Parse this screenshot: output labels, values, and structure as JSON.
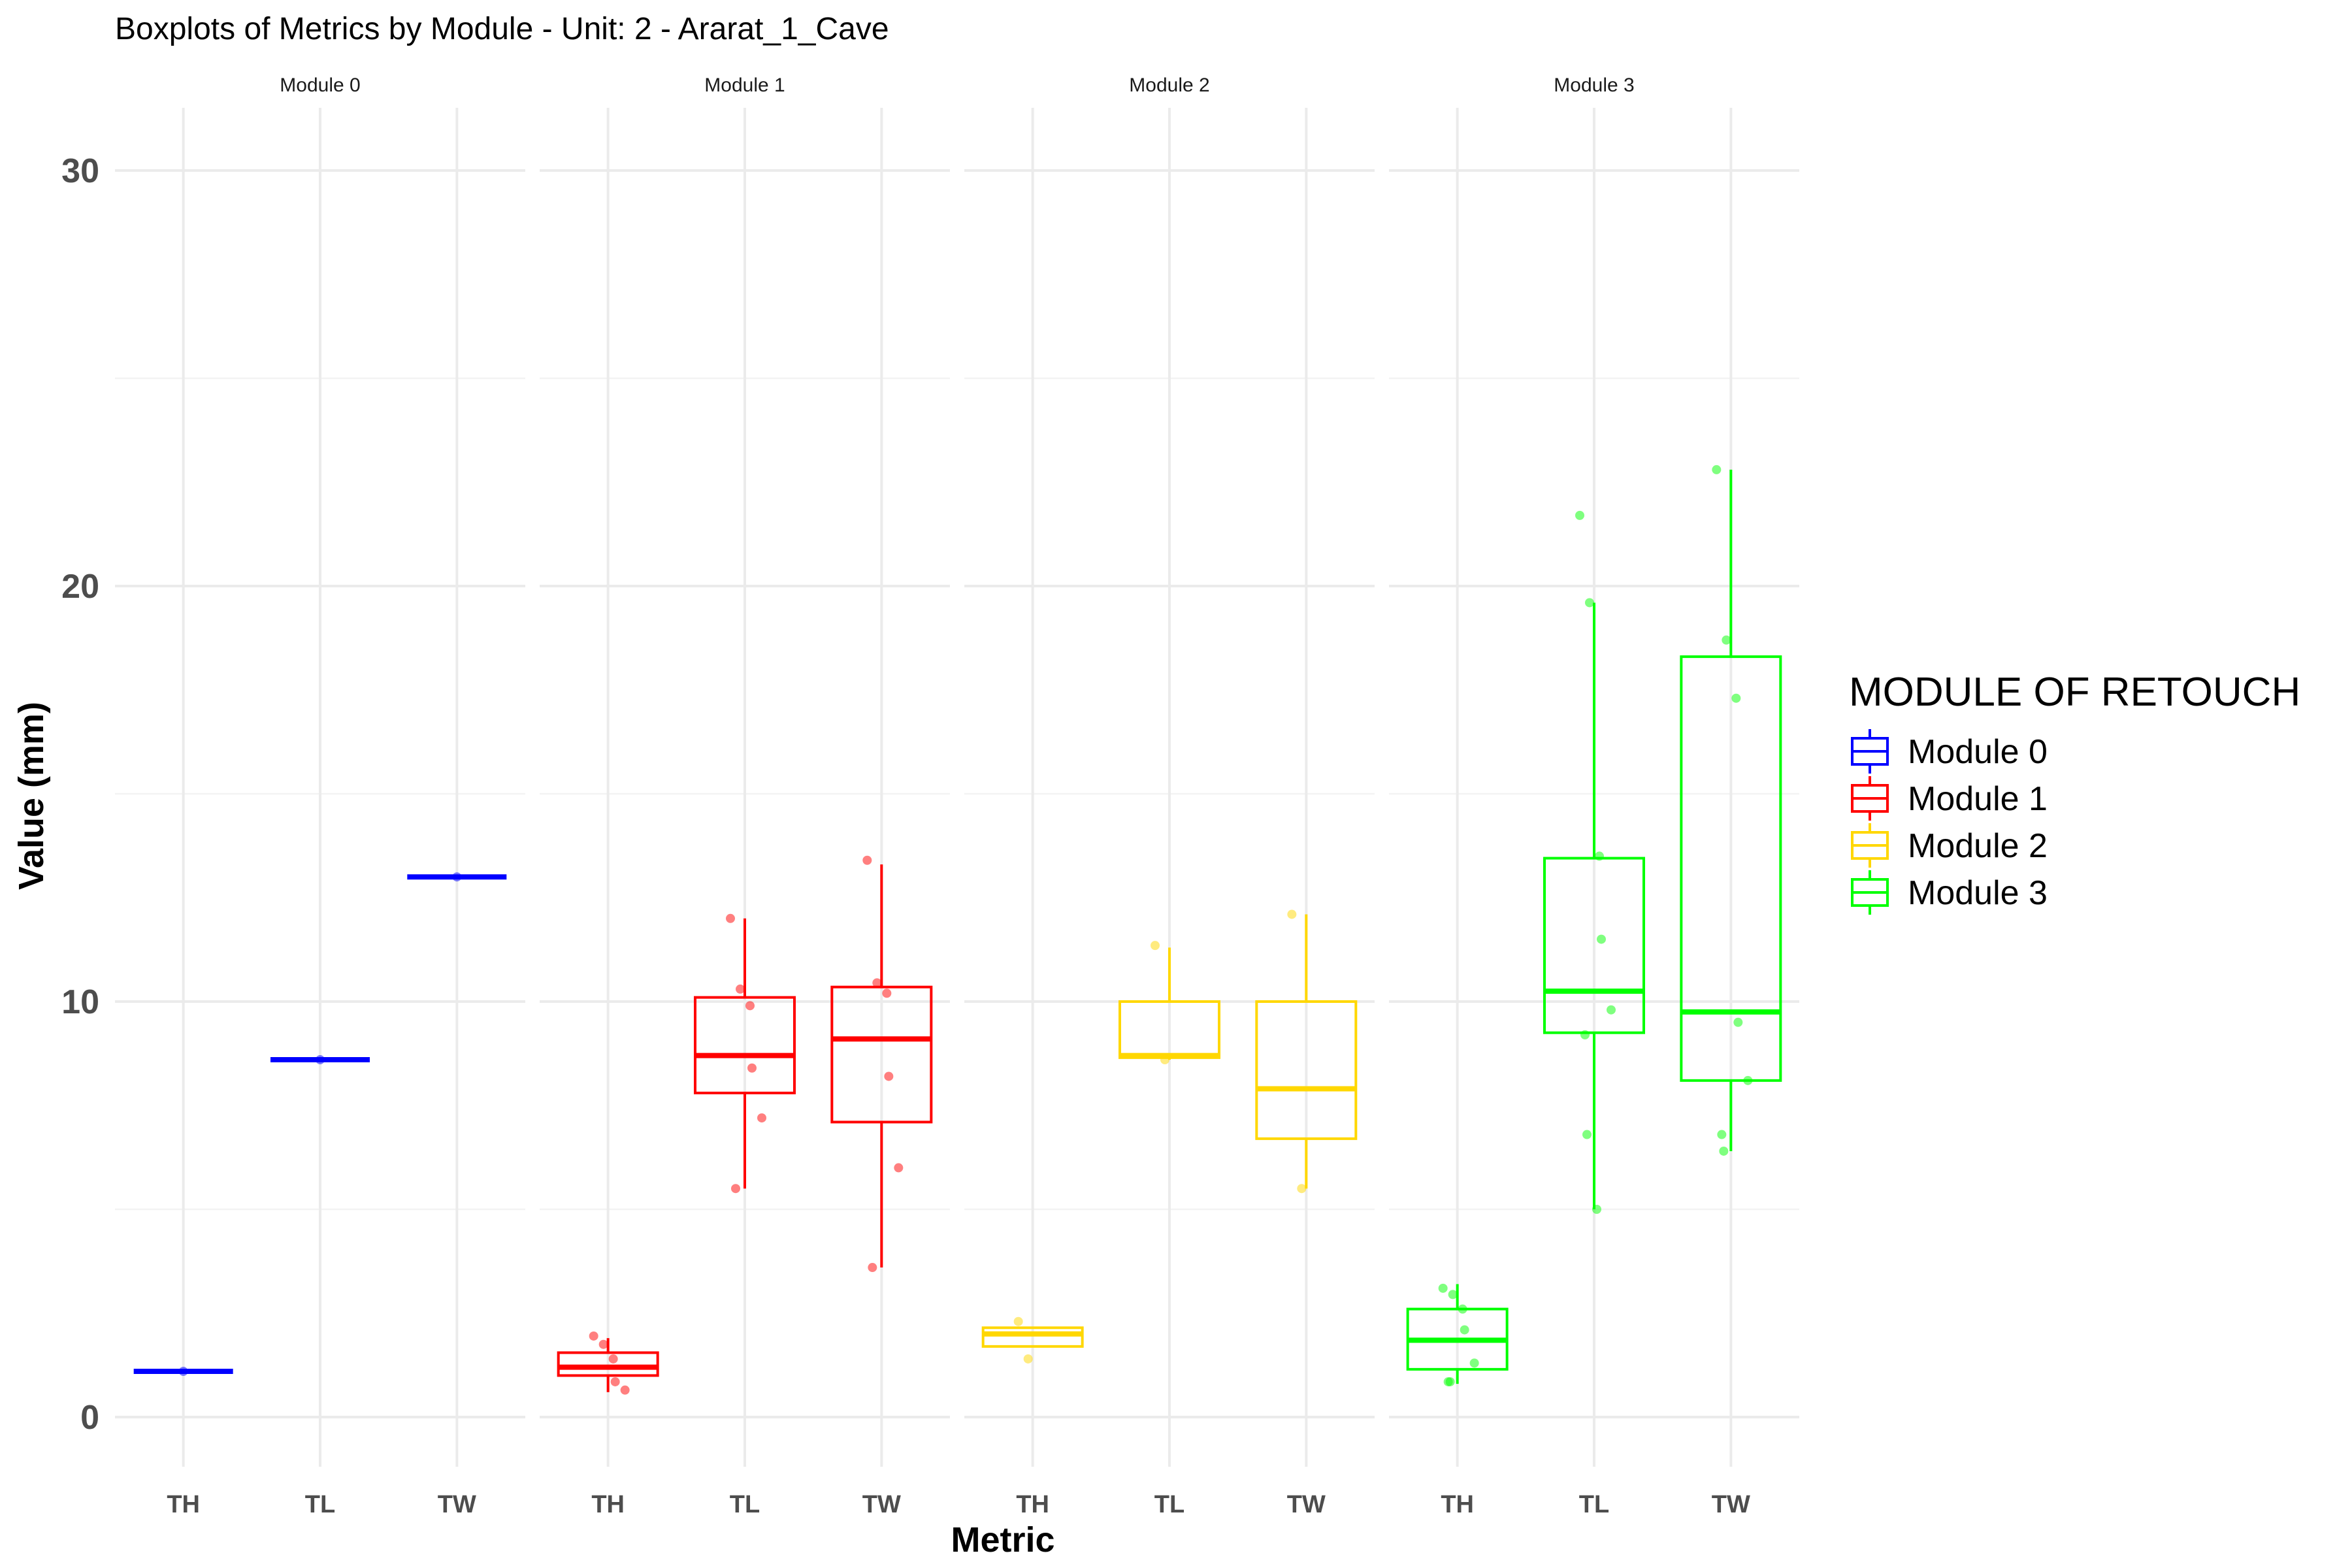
{
  "chart_data": {
    "type": "boxplot",
    "title": "Boxplots of Metrics by Module - Unit: 2 - Ararat_1_Cave",
    "xlabel": "Metric",
    "ylabel": "Value (mm)",
    "ylim": [
      -1.5,
      32
    ],
    "yticks": [
      0,
      10,
      20,
      30
    ],
    "grid": "on",
    "categories": [
      "TH",
      "TL",
      "TW"
    ],
    "legend": {
      "title": "MODULE OF RETOUCH",
      "position": "right",
      "entries": [
        "Module 0",
        "Module 1",
        "Module 2",
        "Module 3"
      ]
    },
    "series": [
      {
        "name": "Module 0",
        "panel_label": "Module 0",
        "color": "#0000ff",
        "boxes": [
          {
            "metric": "TH",
            "min": 1.1,
            "q1": 1.1,
            "median": 1.1,
            "q3": 1.1,
            "max": 1.1
          },
          {
            "metric": "TL",
            "min": 8.6,
            "q1": 8.6,
            "median": 8.6,
            "q3": 8.6,
            "max": 8.6
          },
          {
            "metric": "TW",
            "min": 13.0,
            "q1": 13.0,
            "median": 13.0,
            "q3": 13.0,
            "max": 13.0
          }
        ],
        "points": [
          {
            "metric": "TH",
            "values": [
              1.1
            ]
          },
          {
            "metric": "TL",
            "values": [
              8.6
            ]
          },
          {
            "metric": "TW",
            "values": [
              13.0
            ]
          }
        ]
      },
      {
        "name": "Module 1",
        "panel_label": "Module 1",
        "color": "#ff0000",
        "boxes": [
          {
            "metric": "TH",
            "min": 0.6,
            "q1": 1.0,
            "median": 1.2,
            "q3": 1.55,
            "max": 1.9
          },
          {
            "metric": "TL",
            "min": 5.5,
            "q1": 7.8,
            "median": 8.7,
            "q3": 10.1,
            "max": 12.0
          },
          {
            "metric": "TW",
            "min": 3.6,
            "q1": 7.1,
            "median": 9.1,
            "q3": 10.35,
            "max": 13.3
          }
        ],
        "points": [
          {
            "metric": "TH",
            "values": [
              1.95,
              1.75,
              1.4,
              0.85,
              0.65
            ]
          },
          {
            "metric": "TL",
            "values": [
              12.0,
              10.3,
              9.9,
              8.4,
              7.2,
              5.5
            ]
          },
          {
            "metric": "TW",
            "values": [
              13.4,
              10.45,
              10.2,
              8.2,
              6.0,
              3.6
            ]
          }
        ]
      },
      {
        "name": "Module 2",
        "panel_label": "Module 2",
        "color": "#ffd700",
        "boxes": [
          {
            "metric": "TH",
            "min": 1.7,
            "q1": 1.7,
            "median": 2.0,
            "q3": 2.15,
            "max": 2.15
          },
          {
            "metric": "TL",
            "min": 8.6,
            "q1": 8.65,
            "median": 8.7,
            "q3": 10.0,
            "max": 11.3
          },
          {
            "metric": "TW",
            "min": 5.5,
            "q1": 6.7,
            "median": 7.9,
            "q3": 10.0,
            "max": 12.1
          }
        ],
        "points": [
          {
            "metric": "TH",
            "values": [
              2.3,
              1.4
            ]
          },
          {
            "metric": "TL",
            "values": [
              11.35,
              8.6
            ]
          },
          {
            "metric": "TW",
            "values": [
              12.1,
              5.5
            ]
          }
        ]
      },
      {
        "name": "Module 3",
        "panel_label": "Module 3",
        "color": "#00ff00",
        "boxes": [
          {
            "metric": "TH",
            "min": 0.8,
            "q1": 1.15,
            "median": 1.85,
            "q3": 2.6,
            "max": 3.2
          },
          {
            "metric": "TL",
            "min": 5.0,
            "q1": 9.25,
            "median": 10.25,
            "q3": 13.45,
            "max": 19.6
          },
          {
            "metric": "TW",
            "min": 6.4,
            "q1": 8.1,
            "median": 9.75,
            "q3": 18.3,
            "max": 22.8
          }
        ],
        "points": [
          {
            "metric": "TH",
            "values": [
              3.1,
              2.95,
              2.6,
              2.1,
              1.3,
              0.85,
              0.85
            ]
          },
          {
            "metric": "TL",
            "values": [
              21.7,
              19.6,
              13.5,
              11.5,
              9.8,
              9.2,
              6.8,
              5.0
            ]
          },
          {
            "metric": "TW",
            "values": [
              22.8,
              18.7,
              17.3,
              9.5,
              8.1,
              6.8,
              6.4
            ]
          }
        ]
      }
    ]
  }
}
